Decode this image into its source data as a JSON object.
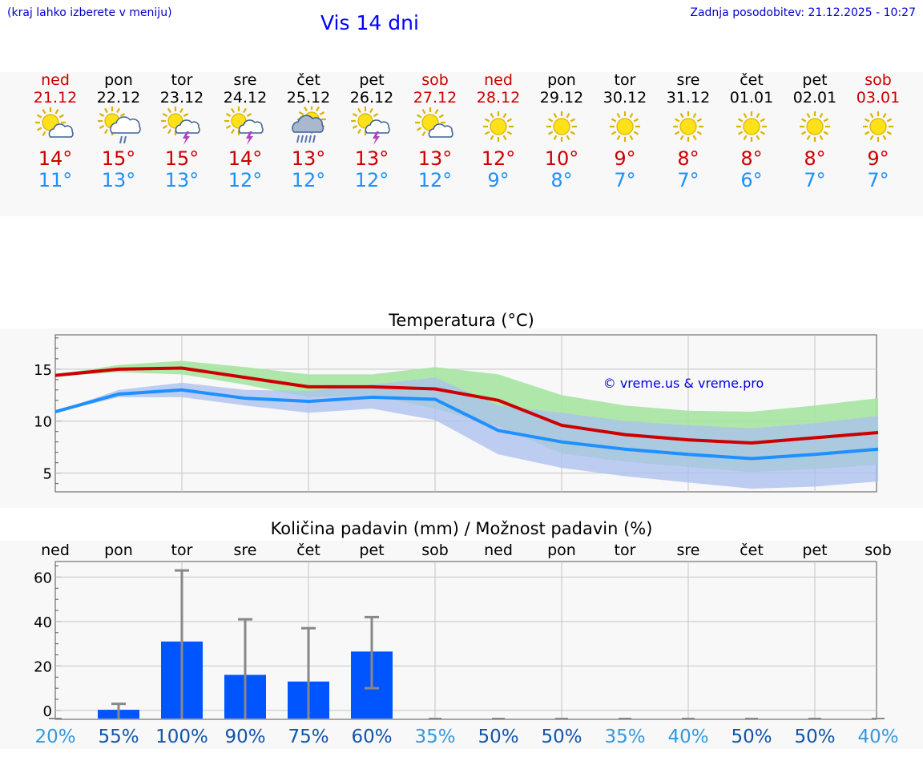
{
  "header": {
    "location_hint": "(kraj lahko izberete v meniju)",
    "title": "Vis 14 dni",
    "last_update": "Zadnja posodobitev: 21.12.2025 - 10:27"
  },
  "colors": {
    "weekend": "#cc0000",
    "max_temp": "#cc0000",
    "min_temp": "#1e90ff",
    "max_band": "#a6e3a1",
    "min_band": "#a9bff0",
    "bar": "#0055ff",
    "prob_low": "#3399dd",
    "prob_high": "#1155aa"
  },
  "days": [
    {
      "name": "ned",
      "date": "21.12",
      "weekend": true,
      "icon": "sun-cloud-icon",
      "max": "14°",
      "min": "11°"
    },
    {
      "name": "pon",
      "date": "22.12",
      "weekend": false,
      "icon": "sun-cloud-rain-icon",
      "max": "15°",
      "min": "13°"
    },
    {
      "name": "tor",
      "date": "23.12",
      "weekend": false,
      "icon": "sun-thunder-icon",
      "max": "15°",
      "min": "13°"
    },
    {
      "name": "sre",
      "date": "24.12",
      "weekend": false,
      "icon": "sun-thunder-icon",
      "max": "14°",
      "min": "12°"
    },
    {
      "name": "čet",
      "date": "25.12",
      "weekend": false,
      "icon": "sun-heavy-rain-icon",
      "max": "13°",
      "min": "12°"
    },
    {
      "name": "pet",
      "date": "26.12",
      "weekend": false,
      "icon": "sun-thunder-icon",
      "max": "13°",
      "min": "12°"
    },
    {
      "name": "sob",
      "date": "27.12",
      "weekend": true,
      "icon": "sun-cloud-icon",
      "max": "13°",
      "min": "12°"
    },
    {
      "name": "ned",
      "date": "28.12",
      "weekend": true,
      "icon": "sun-icon",
      "max": "12°",
      "min": "9°"
    },
    {
      "name": "pon",
      "date": "29.12",
      "weekend": false,
      "icon": "sun-icon",
      "max": "10°",
      "min": "8°"
    },
    {
      "name": "tor",
      "date": "30.12",
      "weekend": false,
      "icon": "sun-icon",
      "max": "9°",
      "min": "7°"
    },
    {
      "name": "sre",
      "date": "31.12",
      "weekend": false,
      "icon": "sun-icon",
      "max": "8°",
      "min": "7°"
    },
    {
      "name": "čet",
      "date": "01.01",
      "weekend": false,
      "icon": "sun-icon",
      "max": "8°",
      "min": "6°"
    },
    {
      "name": "pet",
      "date": "02.01",
      "weekend": false,
      "icon": "sun-icon",
      "max": "8°",
      "min": "7°"
    },
    {
      "name": "sob",
      "date": "03.01",
      "weekend": true,
      "icon": "sun-icon",
      "max": "9°",
      "min": "7°"
    }
  ],
  "chart_data": [
    {
      "type": "line",
      "title": "Temperatura (°C)",
      "watermark": "© vreme.us & vreme.pro",
      "x": [
        0,
        1,
        2,
        3,
        4,
        5,
        6,
        7,
        8,
        9,
        10,
        11,
        12,
        13
      ],
      "ylim": [
        3.2,
        18.3
      ],
      "yticks": [
        5,
        10,
        15
      ],
      "grid": true,
      "series": [
        {
          "name": "max",
          "values": [
            14.4,
            15.0,
            15.1,
            14.2,
            13.3,
            13.3,
            13.1,
            12.0,
            9.6,
            8.7,
            8.2,
            7.9,
            8.4,
            8.9
          ]
        },
        {
          "name": "min",
          "values": [
            10.9,
            12.6,
            13.0,
            12.2,
            11.9,
            12.3,
            12.1,
            9.1,
            8.0,
            7.3,
            6.8,
            6.4,
            6.8,
            7.3
          ]
        }
      ],
      "bands": [
        {
          "name": "max_range",
          "upper": [
            14.5,
            15.4,
            15.8,
            15.2,
            14.5,
            14.5,
            15.2,
            14.5,
            12.5,
            11.5,
            11.0,
            10.9,
            11.5,
            12.2
          ],
          "lower": [
            14.3,
            14.7,
            14.5,
            13.5,
            12.3,
            12.5,
            11.2,
            9.5,
            6.9,
            6.1,
            5.6,
            5.1,
            5.4,
            5.8
          ]
        },
        {
          "name": "min_range",
          "upper": [
            10.9,
            13.0,
            13.7,
            13.0,
            12.9,
            13.5,
            14.2,
            11.5,
            10.8,
            10.0,
            9.6,
            9.3,
            9.8,
            10.5
          ],
          "lower": [
            10.8,
            12.3,
            12.3,
            11.5,
            10.8,
            11.2,
            10.1,
            6.8,
            5.5,
            4.7,
            4.1,
            3.5,
            3.7,
            4.2
          ]
        }
      ]
    },
    {
      "type": "bar",
      "title": "Količina padavin (mm) / Možnost padavin (%)",
      "categories": [
        "ned",
        "pon",
        "tor",
        "sre",
        "čet",
        "pet",
        "sob",
        "ned",
        "pon",
        "tor",
        "sre",
        "čet",
        "pet",
        "sob"
      ],
      "values": [
        0,
        0.3,
        31,
        16,
        13,
        26.5,
        0,
        0,
        0,
        0,
        0,
        0,
        0,
        0
      ],
      "error_high": [
        0,
        3,
        63,
        41,
        37,
        42,
        0,
        0,
        0,
        0,
        0,
        0,
        0,
        0
      ],
      "error_low": [
        0,
        0,
        0,
        0,
        0,
        10,
        0,
        0,
        0,
        0,
        0,
        0,
        0,
        0
      ],
      "probability": [
        "20%",
        "55%",
        "100%",
        "90%",
        "75%",
        "60%",
        "35%",
        "50%",
        "50%",
        "35%",
        "40%",
        "50%",
        "50%",
        "40%"
      ],
      "ylim": [
        -4,
        67
      ],
      "yticks": [
        0,
        20,
        40,
        60
      ],
      "grid": true
    }
  ]
}
